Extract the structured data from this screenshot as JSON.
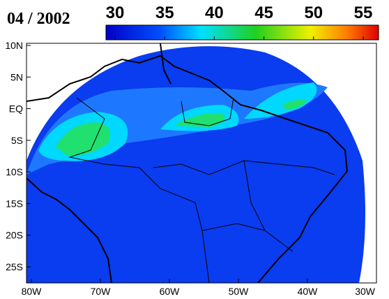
{
  "title": "04 / 2002",
  "colorbar": {
    "ticks": [
      30,
      35,
      40,
      45,
      50,
      55
    ]
  },
  "lat_labels": [
    "10N",
    "5N",
    "EQ",
    "5S",
    "10S",
    "15S",
    "20S",
    "25S"
  ],
  "lon_labels": [
    "80W",
    "70W",
    "60W",
    "50W",
    "40W",
    "30W"
  ]
}
